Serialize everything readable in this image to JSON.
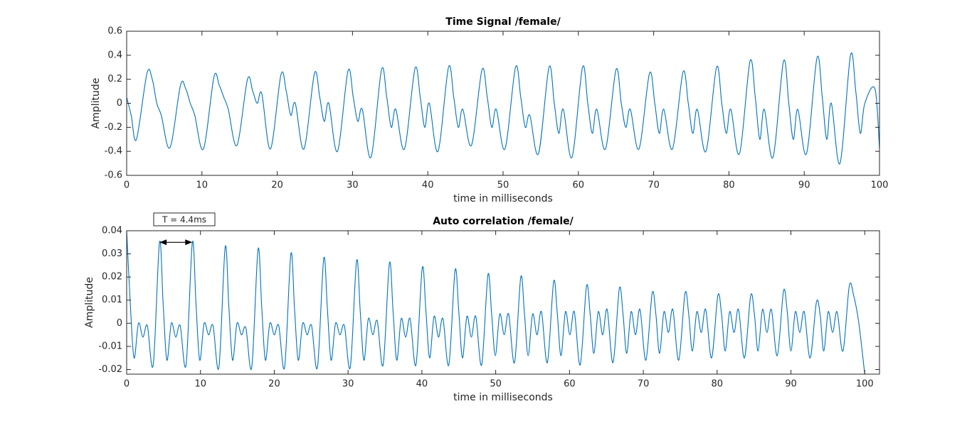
{
  "chart_data": [
    {
      "type": "line",
      "title": "Time Signal /female/",
      "xlabel": "time in milliseconds",
      "ylabel": "Amplitude",
      "color": "#0072BD",
      "xlim": [
        0,
        100
      ],
      "xticks": [
        0,
        10,
        20,
        30,
        40,
        50,
        60,
        70,
        80,
        90,
        100
      ],
      "ylim": [
        -0.6,
        0.6
      ],
      "yticks": [
        -0.6,
        -0.4,
        -0.2,
        0,
        0.2,
        0.4,
        0.6
      ],
      "x": [
        0,
        0.6,
        1.3,
        2.7,
        3.4,
        4.0,
        4.6,
        5.75,
        7.15,
        7.85,
        8.45,
        9.05,
        10.2,
        11.6,
        12.3,
        12.9,
        13.5,
        14.65,
        16.05,
        16.75,
        17.35,
        17.95,
        19.1,
        20.5,
        21.2,
        21.8,
        22.4,
        23.55,
        24.95,
        25.65,
        26.25,
        26.85,
        28,
        29.4,
        30.1,
        30.7,
        31.3,
        32.45,
        33.85,
        34.55,
        35.15,
        35.75,
        36.9,
        38.3,
        39,
        39.6,
        40.2,
        41.35,
        42.75,
        43.45,
        44.05,
        44.65,
        45.8,
        47.2,
        47.9,
        48.5,
        49.1,
        50.25,
        51.65,
        52.35,
        52.95,
        53.55,
        54.7,
        56.1,
        56.8,
        57.4,
        58,
        59.15,
        60.55,
        61.25,
        61.85,
        62.45,
        63.6,
        65,
        65.7,
        66.3,
        66.9,
        68.05,
        69.45,
        70.15,
        70.75,
        71.35,
        72.5,
        73.9,
        74.6,
        75.2,
        75.8,
        76.95,
        78.35,
        79.05,
        79.65,
        80.25,
        81.4,
        82.8,
        83.5,
        84.1,
        84.7,
        85.85,
        87.25,
        87.95,
        88.55,
        89.15,
        90.3,
        91.7,
        92.4,
        93,
        93.6,
        94.75,
        96.15,
        96.85,
        97.45,
        98.05,
        99.4,
        100
      ],
      "values": [
        0.05,
        -0.1,
        -0.3,
        0.25,
        0.2,
        0.0,
        -0.1,
        -0.37,
        0.15,
        0.12,
        0.0,
        -0.1,
        -0.38,
        0.22,
        0.15,
        0.05,
        -0.05,
        -0.35,
        0.2,
        0.1,
        0.0,
        0.08,
        -0.38,
        0.24,
        0.1,
        -0.1,
        0.0,
        -0.38,
        0.25,
        0.05,
        -0.15,
        0.0,
        -0.4,
        0.27,
        0.05,
        -0.15,
        -0.05,
        -0.45,
        0.28,
        0.05,
        -0.2,
        -0.05,
        -0.38,
        0.29,
        0.05,
        -0.2,
        0.0,
        -0.4,
        0.3,
        0.05,
        -0.2,
        -0.05,
        -0.35,
        0.28,
        0.05,
        -0.2,
        -0.05,
        -0.38,
        0.3,
        0.05,
        -0.2,
        -0.1,
        -0.42,
        0.3,
        0.0,
        -0.25,
        -0.05,
        -0.45,
        0.3,
        0.0,
        -0.25,
        -0.05,
        -0.38,
        0.28,
        0.0,
        -0.2,
        -0.05,
        -0.38,
        0.25,
        0.0,
        -0.25,
        -0.05,
        -0.38,
        0.26,
        0.0,
        -0.25,
        -0.05,
        -0.4,
        0.3,
        0.0,
        -0.25,
        -0.05,
        -0.42,
        0.35,
        0.05,
        -0.3,
        -0.05,
        -0.45,
        0.35,
        0.0,
        -0.3,
        -0.05,
        -0.42,
        0.38,
        0.05,
        -0.3,
        0.0,
        -0.5,
        0.4,
        0.1,
        -0.25,
        0.0,
        0.12,
        -0.38
      ]
    },
    {
      "type": "line",
      "title": "Auto correlation /female/",
      "xlabel": "time in milliseconds",
      "ylabel": "Amplitude",
      "annotation": "T = 4.4ms",
      "color": "#0072BD",
      "xlim": [
        0,
        102
      ],
      "xticks": [
        0,
        10,
        20,
        30,
        40,
        50,
        60,
        70,
        80,
        90,
        100
      ],
      "ylim": [
        -0.022,
        0.04
      ],
      "yticks": [
        -0.02,
        -0.01,
        0,
        0.01,
        0.02,
        0.03,
        0.04
      ],
      "x": [
        0,
        0.5,
        1,
        1.6,
        2.2,
        2.8,
        3.6,
        4.45,
        4.95,
        5.45,
        6.05,
        6.65,
        7.25,
        8.05,
        8.9,
        9.4,
        9.9,
        10.5,
        11.1,
        11.7,
        12.5,
        13.35,
        13.85,
        14.35,
        14.95,
        15.55,
        16.15,
        16.95,
        17.8,
        18.3,
        18.8,
        19.4,
        20,
        20.6,
        21.4,
        22.25,
        22.75,
        23.25,
        23.85,
        24.45,
        25.05,
        25.85,
        26.7,
        27.2,
        27.7,
        28.3,
        28.9,
        29.5,
        30.3,
        31.15,
        31.65,
        32.15,
        32.75,
        33.35,
        33.95,
        34.75,
        35.6,
        36.1,
        36.6,
        37.2,
        37.8,
        38.4,
        39.2,
        40.05,
        40.55,
        41.05,
        41.65,
        42.25,
        42.85,
        43.65,
        44.5,
        45,
        45.5,
        46.1,
        46.7,
        47.3,
        48.1,
        48.95,
        49.45,
        49.95,
        50.55,
        51.15,
        51.75,
        52.55,
        53.4,
        53.9,
        54.4,
        55,
        55.6,
        56.2,
        57,
        57.85,
        58.35,
        58.85,
        59.45,
        60.05,
        60.65,
        61.45,
        62.3,
        62.8,
        63.3,
        63.9,
        64.5,
        65.1,
        65.9,
        66.75,
        67.25,
        67.75,
        68.35,
        68.95,
        69.55,
        70.35,
        71.2,
        71.7,
        72.2,
        72.8,
        73.4,
        74,
        74.8,
        75.65,
        76.15,
        76.65,
        77.25,
        77.85,
        78.45,
        79.25,
        80.1,
        80.6,
        81.1,
        81.7,
        82.3,
        82.9,
        83.7,
        84.55,
        85.05,
        85.55,
        86.15,
        86.75,
        87.35,
        88.15,
        89,
        89.5,
        90,
        90.6,
        91.2,
        91.8,
        92.6,
        93.45,
        93.95,
        94.45,
        95.05,
        95.65,
        96.25,
        97.05,
        97.9,
        98.5,
        99.2,
        100
      ],
      "values": [
        0.04,
        0.008,
        -0.015,
        0.0,
        -0.006,
        -0.001,
        -0.018,
        0.035,
        0.008,
        -0.016,
        0.0,
        -0.006,
        -0.001,
        -0.018,
        0.035,
        0.008,
        -0.016,
        0.0,
        -0.005,
        -0.001,
        -0.019,
        0.033,
        0.007,
        -0.016,
        0.0,
        -0.005,
        -0.002,
        -0.019,
        0.032,
        0.007,
        -0.016,
        0.0,
        -0.005,
        -0.001,
        -0.019,
        0.03,
        0.006,
        -0.016,
        0.0,
        -0.005,
        -0.001,
        -0.019,
        0.028,
        0.006,
        -0.016,
        0.0,
        -0.005,
        -0.001,
        -0.019,
        0.027,
        0.005,
        -0.016,
        0.002,
        -0.005,
        0.001,
        -0.018,
        0.026,
        0.005,
        -0.016,
        0.002,
        -0.006,
        0.002,
        -0.018,
        0.024,
        0.005,
        -0.015,
        0.003,
        -0.006,
        0.002,
        -0.018,
        0.023,
        0.005,
        -0.015,
        0.003,
        -0.006,
        0.003,
        -0.018,
        0.021,
        0.004,
        -0.014,
        0.004,
        -0.005,
        0.004,
        -0.017,
        0.02,
        0.004,
        -0.014,
        0.004,
        -0.005,
        0.005,
        -0.017,
        0.018,
        0.004,
        -0.014,
        0.005,
        -0.005,
        0.005,
        -0.018,
        0.016,
        0.004,
        -0.013,
        0.005,
        -0.005,
        0.006,
        -0.017,
        0.015,
        0.004,
        -0.013,
        0.005,
        -0.005,
        0.006,
        -0.016,
        0.013,
        0.004,
        -0.013,
        0.005,
        -0.004,
        0.006,
        -0.016,
        0.013,
        0.004,
        -0.012,
        0.005,
        -0.004,
        0.006,
        -0.015,
        0.012,
        0.004,
        -0.012,
        0.005,
        -0.004,
        0.006,
        -0.015,
        0.012,
        0.004,
        -0.012,
        0.006,
        -0.004,
        0.006,
        -0.014,
        0.014,
        0.005,
        -0.012,
        0.005,
        -0.004,
        0.005,
        -0.015,
        0.009,
        0.004,
        -0.012,
        0.005,
        -0.004,
        0.005,
        -0.012,
        0.016,
        0.012,
        0.0,
        -0.022
      ]
    }
  ]
}
